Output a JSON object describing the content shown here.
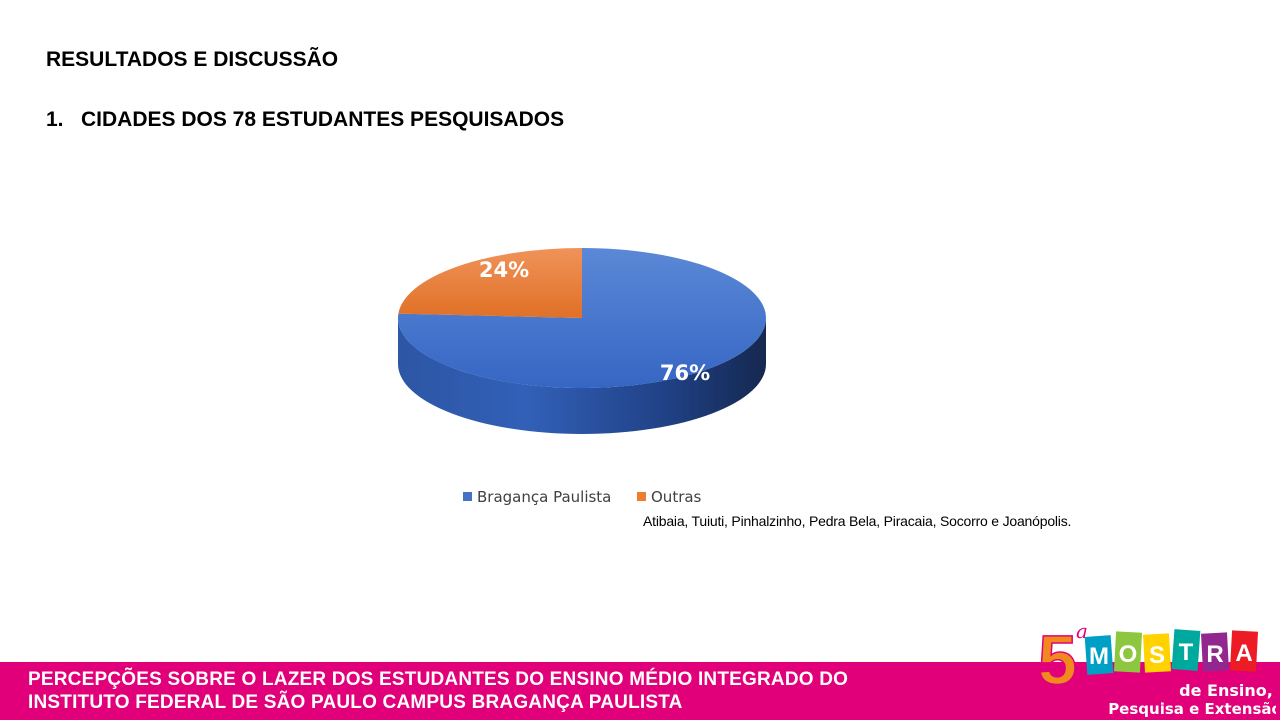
{
  "slide": {
    "section_title": "RESULTADOS E DISCUSSÃO",
    "subsection": {
      "number": "1.",
      "title": "CIDADES DOS 78 ESTUDANTES PESQUISADOS"
    }
  },
  "chart_data": {
    "type": "pie",
    "title": "",
    "categories": [
      "Bragança Paulista",
      "Outras"
    ],
    "values": [
      76,
      24
    ],
    "labels": [
      "76%",
      "24%"
    ],
    "colors": [
      "#3a6bc8",
      "#ed7d31"
    ],
    "legend_position": "bottom"
  },
  "note": {
    "cities": "Atibaia, Tuiuti, Pinhalzinho, Pedra Bela, Piracaia, Socorro e Joanópolis."
  },
  "footer": {
    "line1": "PERCEPÇÕES SOBRE O LAZER DOS ESTUDANTES DO ENSINO MÉDIO INTEGRADO DO",
    "line2": "INSTITUTO FEDERAL DE SÃO PAULO CAMPUS BRAGANÇA PAULISTA",
    "color": "#e2007a"
  },
  "logo": {
    "number": "5",
    "ordinal": "a",
    "letters": [
      "M",
      "O",
      "S",
      "T",
      "R",
      "A"
    ],
    "line1": "de Ensino,",
    "line2": "Pesquisa e Extensão"
  }
}
